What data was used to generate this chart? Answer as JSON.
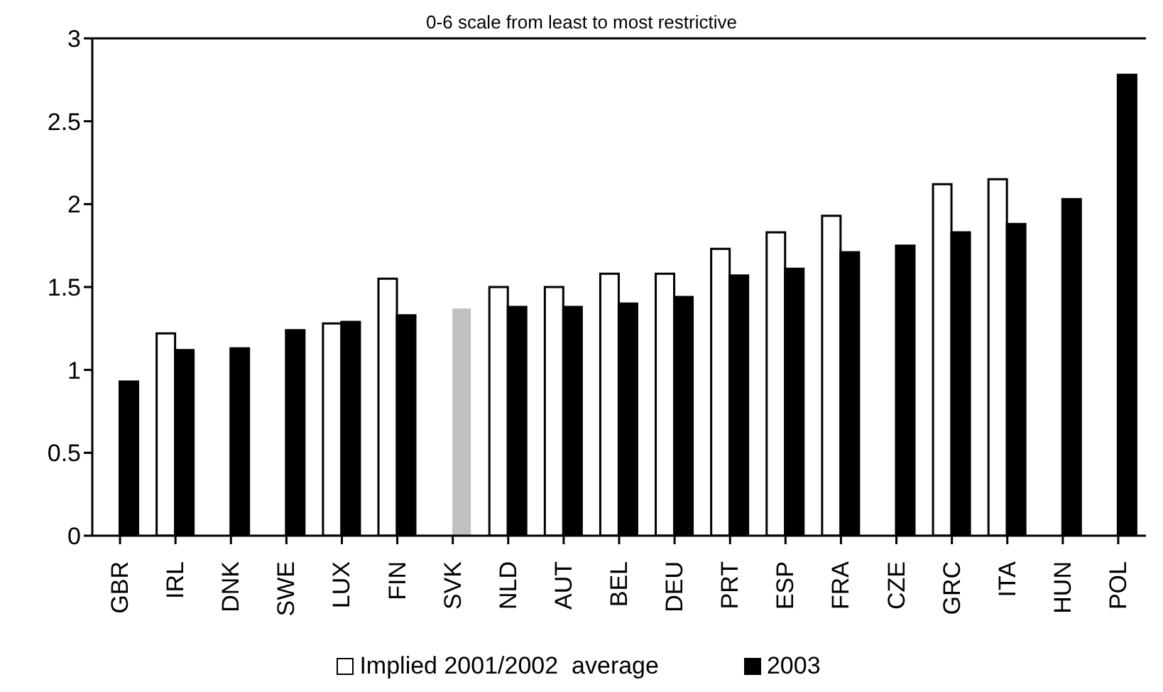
{
  "chart_data": {
    "type": "bar",
    "title": "0-6 scale from least to most restrictive",
    "categories": [
      "GBR",
      "IRL",
      "DNK",
      "SWE",
      "LUX",
      "FIN",
      "SVK",
      "NLD",
      "AUT",
      "BEL",
      "DEU",
      "PRT",
      "ESP",
      "FRA",
      "CZE",
      "GRC",
      "ITA",
      "HUN",
      "POL"
    ],
    "series": [
      {
        "name": "Implied 2001/2002  average",
        "color": "#ffffff",
        "values": [
          null,
          1.22,
          null,
          null,
          1.28,
          1.55,
          null,
          1.5,
          1.5,
          1.58,
          1.58,
          1.73,
          1.83,
          1.93,
          null,
          2.12,
          2.15,
          null,
          null
        ]
      },
      {
        "name": "2003",
        "color": "#000000",
        "colors": [
          "#000000",
          "#000000",
          "#000000",
          "#000000",
          "#000000",
          "#000000",
          "#c0c0c0",
          "#000000",
          "#000000",
          "#000000",
          "#000000",
          "#000000",
          "#000000",
          "#000000",
          "#000000",
          "#000000",
          "#000000",
          "#000000",
          "#000000"
        ],
        "values": [
          0.93,
          1.12,
          1.13,
          1.24,
          1.29,
          1.33,
          1.37,
          1.38,
          1.38,
          1.4,
          1.44,
          1.57,
          1.61,
          1.71,
          1.75,
          1.83,
          1.88,
          2.03,
          2.78
        ]
      }
    ],
    "ylim": [
      0,
      3
    ],
    "yticks": [
      0,
      0.5,
      1,
      1.5,
      2,
      2.5,
      3
    ],
    "grid": false,
    "legend": "bottom"
  }
}
